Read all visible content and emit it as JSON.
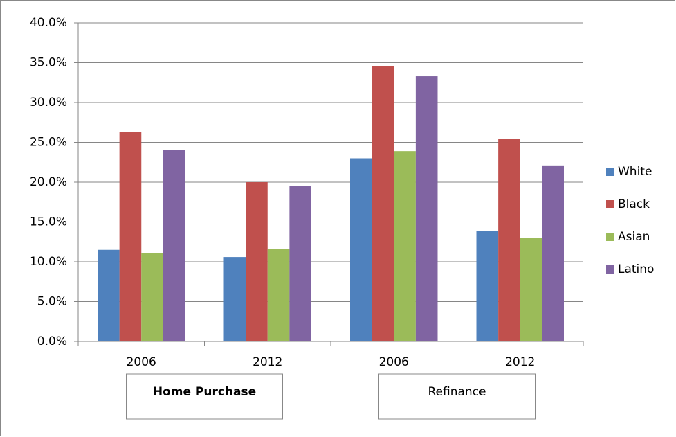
{
  "chart_data": {
    "type": "bar",
    "categories": [
      "2006",
      "2012",
      "2006",
      "2012"
    ],
    "group_labels": [
      "Home Purchase",
      "Refinance"
    ],
    "series": [
      {
        "name": "White",
        "color": "#4f81bd",
        "values": [
          11.5,
          10.6,
          23.0,
          13.9
        ]
      },
      {
        "name": "Black",
        "color": "#c0504d",
        "values": [
          26.3,
          20.0,
          34.6,
          25.4
        ]
      },
      {
        "name": "Asian",
        "color": "#9bbb59",
        "values": [
          11.1,
          11.6,
          23.9,
          13.0
        ]
      },
      {
        "name": "Latino",
        "color": "#8064a2",
        "values": [
          24.0,
          19.5,
          33.3,
          22.1
        ]
      }
    ],
    "ylim": [
      0,
      40
    ],
    "yticks": [
      {
        "value": 0,
        "label": "0.0%"
      },
      {
        "value": 5,
        "label": "5.0%"
      },
      {
        "value": 10,
        "label": "10.0%"
      },
      {
        "value": 15,
        "label": "15.0%"
      },
      {
        "value": 20,
        "label": "20.0%"
      },
      {
        "value": 25,
        "label": "25.0%"
      },
      {
        "value": 30,
        "label": "30.0%"
      },
      {
        "value": 35,
        "label": "35.0%"
      },
      {
        "value": 40,
        "label": "40.0%"
      }
    ],
    "grid": true,
    "legend": "right"
  }
}
